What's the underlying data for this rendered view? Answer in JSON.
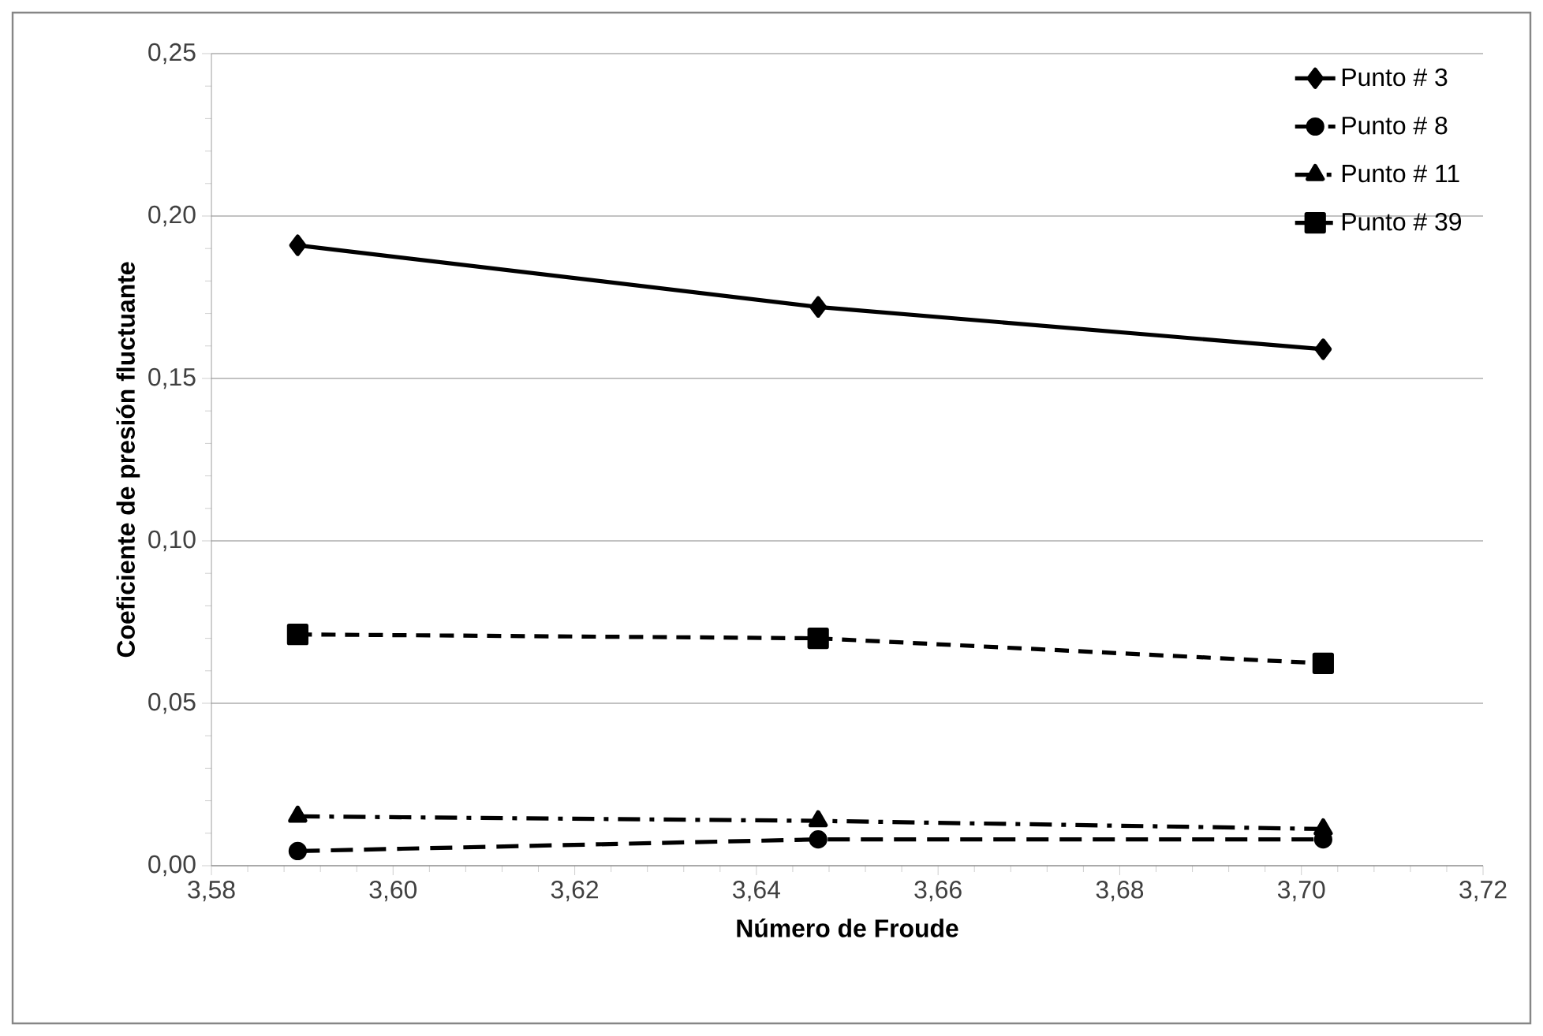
{
  "chart_data": {
    "type": "line",
    "xlabel": "Número de Froude",
    "ylabel": "Coeficiente de presión fluctuante",
    "x": [
      3.5895,
      3.6468,
      3.7024
    ],
    "series": [
      {
        "name": "Punto # 3",
        "color": "#000000",
        "values": [
          0.191,
          0.172,
          0.159
        ],
        "marker": "diamond",
        "line_style": "solid"
      },
      {
        "name": "Punto # 8",
        "color": "#000000",
        "values": [
          0.0045,
          0.0081,
          0.0081
        ],
        "marker": "circle",
        "line_style": "dashed"
      },
      {
        "name": "Punto # 11",
        "color": "#000000",
        "values": [
          0.0152,
          0.0138,
          0.0113
        ],
        "marker": "triangle",
        "line_style": "dashdot"
      },
      {
        "name": "Punto # 39",
        "color": "#000000",
        "values": [
          0.0712,
          0.07,
          0.0623
        ],
        "marker": "square",
        "line_style": "dashed"
      }
    ],
    "xlim": [
      3.58,
      3.72
    ],
    "ylim": [
      0,
      0.25
    ],
    "xticks": [
      {
        "value": 3.58,
        "label": "3,58"
      },
      {
        "value": 3.6,
        "label": "3,60"
      },
      {
        "value": 3.62,
        "label": "3,62"
      },
      {
        "value": 3.64,
        "label": "3,64"
      },
      {
        "value": 3.66,
        "label": "3,66"
      },
      {
        "value": 3.68,
        "label": "3,68"
      },
      {
        "value": 3.7,
        "label": "3,70"
      },
      {
        "value": 3.72,
        "label": "3,72"
      }
    ],
    "yticks": [
      {
        "value": 0,
        "label": "0,00"
      },
      {
        "value": 0.05,
        "label": "0,05"
      },
      {
        "value": 0.1,
        "label": "0,10"
      },
      {
        "value": 0.15,
        "label": "0,15"
      },
      {
        "value": 0.2,
        "label": "0,20"
      },
      {
        "value": 0.25,
        "label": "0,25"
      }
    ],
    "grid": "y",
    "legend": "top right"
  }
}
